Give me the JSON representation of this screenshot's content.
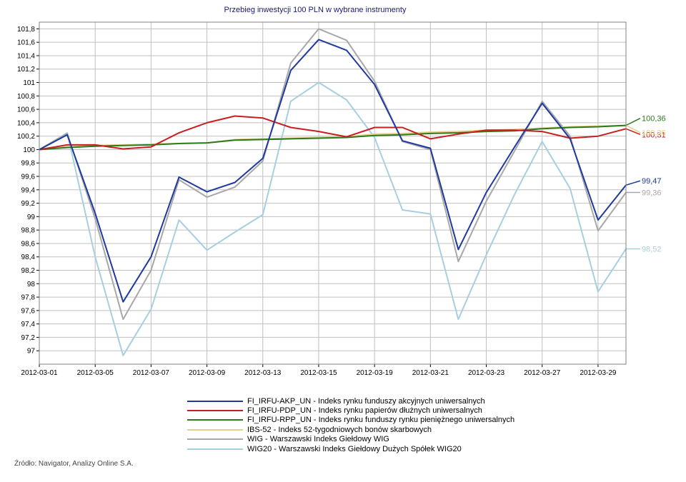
{
  "chart_data": {
    "type": "line",
    "title": "Przebieg inwestycji 100 PLN w wybrane instrumenty",
    "x_tick_labels": [
      "2012-03-01",
      "2012-03-05",
      "2012-03-07",
      "2012-03-09",
      "2012-03-13",
      "2012-03-15",
      "2012-03-19",
      "2012-03-21",
      "2012-03-23",
      "2012-03-27",
      "2012-03-29"
    ],
    "x": [
      "2012-03-01",
      "2012-03-02",
      "2012-03-05",
      "2012-03-06",
      "2012-03-07",
      "2012-03-08",
      "2012-03-09",
      "2012-03-12",
      "2012-03-13",
      "2012-03-14",
      "2012-03-15",
      "2012-03-16",
      "2012-03-19",
      "2012-03-20",
      "2012-03-21",
      "2012-03-22",
      "2012-03-23",
      "2012-03-26",
      "2012-03-27",
      "2012-03-28",
      "2012-03-29",
      "2012-03-30"
    ],
    "ylim": [
      96.8,
      101.9
    ],
    "y_ticks": [
      97,
      97.2,
      97.4,
      97.6,
      97.8,
      98,
      98.2,
      98.4,
      98.6,
      98.8,
      99,
      99.2,
      99.4,
      99.6,
      99.8,
      100,
      100.2,
      100.4,
      100.6,
      100.8,
      101,
      101.2,
      101.4,
      101.6,
      101.8
    ],
    "grid": true,
    "series": [
      {
        "name": "FI_IRFU-AKP_UN - Indeks rynku funduszy akcyjnych uniwersalnych",
        "color": "#1f3a9e",
        "end_label": "99,47",
        "values": [
          100,
          100.22,
          99.05,
          97.73,
          98.4,
          99.59,
          99.37,
          99.51,
          99.87,
          101.18,
          101.64,
          101.48,
          100.97,
          100.13,
          100.02,
          98.51,
          99.36,
          100.03,
          100.69,
          100.16,
          98.95,
          99.47
        ]
      },
      {
        "name": "FI_IRFU-PDP_UN - Indeks rynku papierów dłużnych uniwersalnych",
        "color": "#c81e1e",
        "end_label": "100,31",
        "values": [
          100,
          100.07,
          100.07,
          100.01,
          100.04,
          100.25,
          100.4,
          100.5,
          100.47,
          100.33,
          100.27,
          100.19,
          100.33,
          100.33,
          100.16,
          100.23,
          100.29,
          100.29,
          100.27,
          100.17,
          100.2,
          100.31
        ]
      },
      {
        "name": "FI_IRFU-RPP_UN - Indeks rynku funduszy rynku pieniężnego uniwersalnych",
        "color": "#2b7a1e",
        "end_label": "100,36",
        "values": [
          100,
          100.03,
          100.05,
          100.06,
          100.07,
          100.09,
          100.1,
          100.14,
          100.15,
          100.16,
          100.17,
          100.18,
          100.21,
          100.22,
          100.24,
          100.25,
          100.27,
          100.28,
          100.31,
          100.33,
          100.34,
          100.36
        ]
      },
      {
        "name": "IBS-52 - Indeks 52-tygodniowych bonów skarbowych",
        "color": "#e8cf86",
        "end_label": "100,36",
        "values": [
          100,
          100.04,
          100.06,
          100.07,
          100.08,
          100.09,
          100.1,
          100.15,
          100.16,
          100.17,
          100.18,
          100.19,
          100.23,
          100.24,
          100.26,
          100.27,
          100.29,
          100.3,
          100.32,
          100.34,
          100.35,
          100.36
        ]
      },
      {
        "name": "WIG - Warszawski Indeks Giełdowy WIG",
        "color": "#a8a8a8",
        "end_label": "99,36",
        "values": [
          100,
          100.24,
          98.97,
          97.47,
          98.2,
          99.55,
          99.29,
          99.44,
          99.83,
          101.29,
          101.8,
          101.63,
          101.02,
          100.12,
          100,
          98.33,
          99.23,
          99.97,
          100.72,
          100.2,
          98.79,
          99.36
        ]
      },
      {
        "name": "WIG20 - Warszawski Indeks Giełdowy Dużych Spółek WIG20",
        "color": "#a6cfe0",
        "end_label": "98,52",
        "values": [
          100,
          100.25,
          98.4,
          96.93,
          97.62,
          98.95,
          98.5,
          98.77,
          99.03,
          100.72,
          101.0,
          100.74,
          100.18,
          99.1,
          99.04,
          97.47,
          98.43,
          99.32,
          100.12,
          99.42,
          97.88,
          98.52
        ]
      }
    ],
    "legend_placement": "bottom"
  },
  "source": "Źródło: Navigator, Analizy Online S.A."
}
